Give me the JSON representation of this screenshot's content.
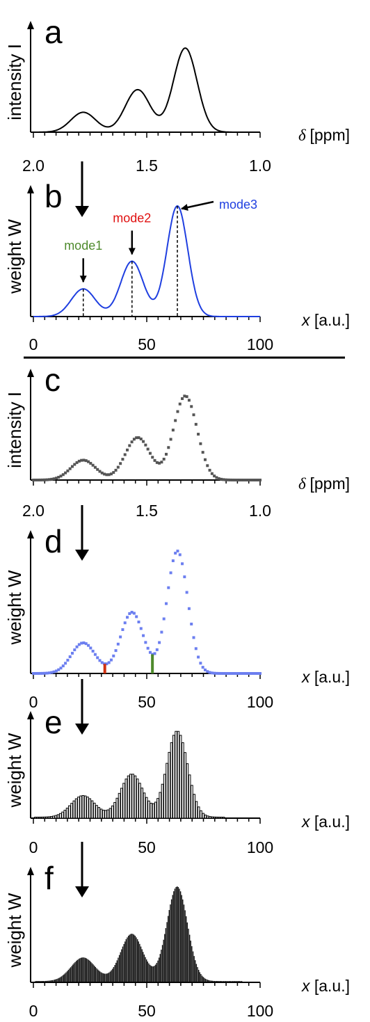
{
  "figure": {
    "panels": [
      "a",
      "b",
      "c",
      "d",
      "e",
      "f"
    ],
    "colors": {
      "spectrum": "#000000",
      "weight_curve": "#1f3fe0",
      "mode1": "#4e8a2c",
      "mode2": "#e01010",
      "mode3": "#1f3fe0",
      "marker_red": "#d03010",
      "marker_green": "#4e8a2c",
      "points_gray": "#555555",
      "points_blue": "#6c7ff0"
    }
  },
  "chart_data": [
    {
      "panel": "a",
      "type": "line",
      "ylabel": "intensity I",
      "xlabel": "δ [ppm]",
      "xlabel_symbol": "δ",
      "xlabel_unit": "[ppm]",
      "xlim": [
        2.0,
        1.0
      ],
      "x_ticks": [
        "2.0",
        "1.5",
        "1.0"
      ],
      "peaks": [
        {
          "x": 1.78,
          "y": 0.22,
          "width": 0.055
        },
        {
          "x": 1.54,
          "y": 0.47,
          "width": 0.055
        },
        {
          "x": 1.33,
          "y": 0.93,
          "width": 0.052
        }
      ]
    },
    {
      "panel": "b",
      "type": "line",
      "ylabel": "weight W",
      "xlabel": "x [a.u.]",
      "xlabel_symbol": "x",
      "xlabel_unit": "[a.u.]",
      "xlim": [
        0,
        100
      ],
      "x_ticks": [
        "0",
        "50",
        "100"
      ],
      "peaks": [
        {
          "x": 22,
          "y": 0.25,
          "width": 5.3
        },
        {
          "x": 43.5,
          "y": 0.5,
          "width": 5.0
        },
        {
          "x": 63.5,
          "y": 1.0,
          "width": 4.6
        }
      ],
      "annotations": [
        {
          "label": "mode1",
          "x": 22
        },
        {
          "label": "mode2",
          "x": 43.5
        },
        {
          "label": "mode3",
          "x": 63.5
        }
      ]
    },
    {
      "panel": "c",
      "type": "scatter",
      "ylabel": "intensity I",
      "xlabel": "δ [ppm]",
      "xlabel_symbol": "δ",
      "xlabel_unit": "[ppm]",
      "xlim": [
        2.0,
        1.0
      ],
      "x_ticks": [
        "2.0",
        "1.5",
        "1.0"
      ],
      "n_points": 100,
      "peaks": [
        {
          "x": 1.78,
          "y": 0.22,
          "width": 0.055
        },
        {
          "x": 1.54,
          "y": 0.47,
          "width": 0.055
        },
        {
          "x": 1.33,
          "y": 0.93,
          "width": 0.052
        }
      ]
    },
    {
      "panel": "d",
      "type": "scatter",
      "ylabel": "weight W",
      "xlabel": "x [a.u.]",
      "xlabel_symbol": "x",
      "xlabel_unit": "[a.u.]",
      "xlim": [
        0,
        100
      ],
      "x_ticks": [
        "0",
        "50",
        "100"
      ],
      "n_points": 100,
      "peaks": [
        {
          "x": 22,
          "y": 0.25,
          "width": 5.3
        },
        {
          "x": 43.5,
          "y": 0.5,
          "width": 5.0
        },
        {
          "x": 63.5,
          "y": 1.0,
          "width": 4.6
        }
      ],
      "markers": [
        {
          "x": 31.5,
          "color": "red"
        },
        {
          "x": 52.5,
          "color": "green"
        }
      ]
    },
    {
      "panel": "e",
      "type": "bar",
      "ylabel": "weight W",
      "xlabel": "x [a.u.]",
      "xlabel_symbol": "x",
      "xlabel_unit": "[a.u.]",
      "xlim": [
        0,
        100
      ],
      "x_ticks": [
        "0",
        "50",
        "100"
      ],
      "bar_spacing": 1,
      "bar_range": [
        1,
        84
      ],
      "peaks": [
        {
          "x": 22,
          "y": 0.25,
          "width": 5.3
        },
        {
          "x": 43.5,
          "y": 0.5,
          "width": 5.0
        },
        {
          "x": 63.5,
          "y": 1.0,
          "width": 4.6
        }
      ]
    },
    {
      "panel": "f",
      "type": "bar",
      "ylabel": "weight W",
      "xlabel": "x [a.u.]",
      "xlabel_symbol": "x",
      "xlabel_unit": "[a.u.]",
      "xlim": [
        0,
        100
      ],
      "x_ticks": [
        "0",
        "50",
        "100"
      ],
      "bar_spacing": 0.5,
      "bar_range": [
        1,
        92
      ],
      "peaks": [
        {
          "x": 22,
          "y": 0.25,
          "width": 5.3
        },
        {
          "x": 43.5,
          "y": 0.5,
          "width": 5.0
        },
        {
          "x": 63.5,
          "y": 1.0,
          "width": 4.6
        }
      ]
    }
  ]
}
